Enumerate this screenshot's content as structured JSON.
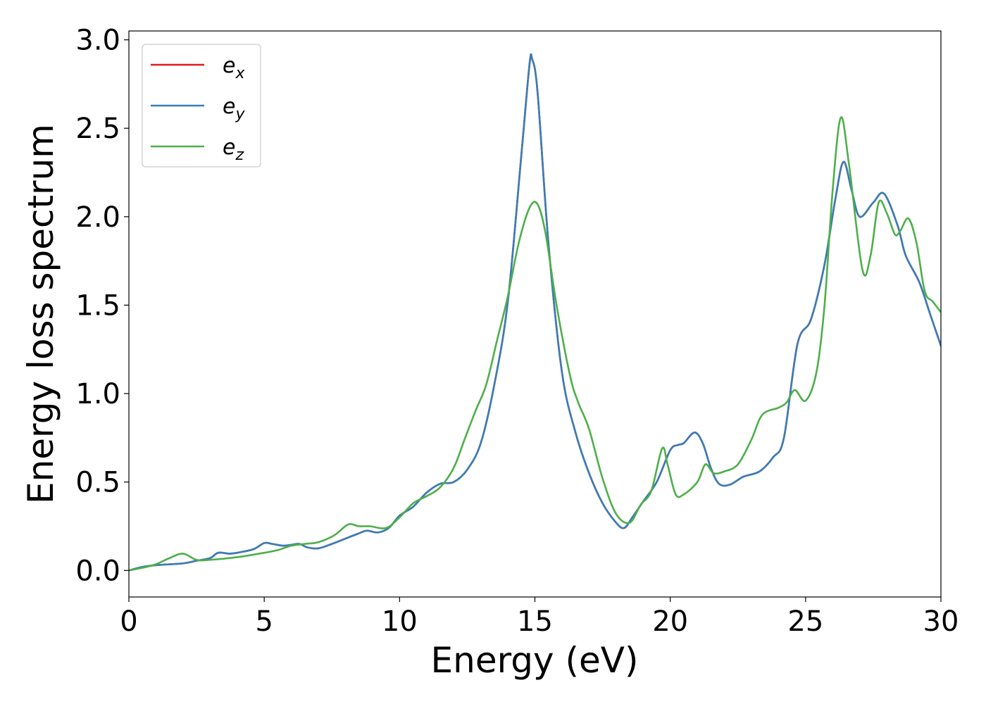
{
  "chart_data": {
    "type": "line",
    "xlabel": "Energy (eV)",
    "ylabel": "Energy loss spectrum",
    "xlim": [
      0,
      30
    ],
    "ylim": [
      -0.15,
      3.05
    ],
    "x_ticks": [
      "0",
      "5",
      "10",
      "15",
      "20",
      "25",
      "30"
    ],
    "y_ticks": [
      "0.0",
      "0.5",
      "1.0",
      "1.5",
      "2.0",
      "2.5",
      "3.0"
    ],
    "grid": false,
    "legend_position": "top-left",
    "series": [
      {
        "name": "e_x",
        "legend_base": "e",
        "legend_sub": "x",
        "color": "#e41a1c",
        "points": [
          [
            0,
            0.0
          ],
          [
            0.5,
            0.02
          ],
          [
            1,
            0.03
          ],
          [
            2,
            0.04
          ],
          [
            2.5,
            0.055
          ],
          [
            3,
            0.07
          ],
          [
            3.3,
            0.1
          ],
          [
            3.7,
            0.095
          ],
          [
            4,
            0.1
          ],
          [
            4.6,
            0.12
          ],
          [
            5,
            0.155
          ],
          [
            5.3,
            0.15
          ],
          [
            5.7,
            0.14
          ],
          [
            6,
            0.145
          ],
          [
            6.3,
            0.15
          ],
          [
            6.6,
            0.13
          ],
          [
            7,
            0.125
          ],
          [
            7.5,
            0.15
          ],
          [
            8,
            0.18
          ],
          [
            8.5,
            0.21
          ],
          [
            8.8,
            0.225
          ],
          [
            9.2,
            0.215
          ],
          [
            9.6,
            0.24
          ],
          [
            10,
            0.31
          ],
          [
            10.5,
            0.36
          ],
          [
            11,
            0.44
          ],
          [
            11.5,
            0.49
          ],
          [
            12,
            0.5
          ],
          [
            12.5,
            0.57
          ],
          [
            13,
            0.72
          ],
          [
            13.5,
            1.05
          ],
          [
            14,
            1.52
          ],
          [
            14.5,
            2.35
          ],
          [
            14.8,
            2.86
          ],
          [
            14.9,
            2.89
          ],
          [
            15.1,
            2.7
          ],
          [
            15.5,
            1.85
          ],
          [
            16,
            1.12
          ],
          [
            16.5,
            0.78
          ],
          [
            17,
            0.55
          ],
          [
            17.5,
            0.38
          ],
          [
            18,
            0.27
          ],
          [
            18.3,
            0.24
          ],
          [
            18.6,
            0.3
          ],
          [
            19,
            0.39
          ],
          [
            19.5,
            0.5
          ],
          [
            20,
            0.68
          ],
          [
            20.3,
            0.71
          ],
          [
            20.5,
            0.72
          ],
          [
            20.9,
            0.78
          ],
          [
            21.2,
            0.72
          ],
          [
            21.5,
            0.58
          ],
          [
            21.8,
            0.49
          ],
          [
            22.2,
            0.485
          ],
          [
            22.7,
            0.53
          ],
          [
            23.3,
            0.56
          ],
          [
            23.8,
            0.64
          ],
          [
            24.2,
            0.75
          ],
          [
            24.7,
            1.28
          ],
          [
            25.2,
            1.42
          ],
          [
            25.7,
            1.73
          ],
          [
            26.1,
            2.1
          ],
          [
            26.4,
            2.31
          ],
          [
            26.7,
            2.15
          ],
          [
            27,
            2.0
          ],
          [
            27.5,
            2.08
          ],
          [
            27.9,
            2.13
          ],
          [
            28.4,
            1.95
          ],
          [
            28.7,
            1.78
          ],
          [
            29.2,
            1.63
          ],
          [
            29.6,
            1.45
          ],
          [
            30,
            1.27
          ]
        ]
      },
      {
        "name": "e_y",
        "legend_base": "e",
        "legend_sub": "y",
        "color": "#377eb8",
        "points": [
          [
            0,
            0.0
          ],
          [
            0.5,
            0.02
          ],
          [
            1,
            0.03
          ],
          [
            2,
            0.04
          ],
          [
            2.5,
            0.055
          ],
          [
            3,
            0.07
          ],
          [
            3.3,
            0.1
          ],
          [
            3.7,
            0.095
          ],
          [
            4,
            0.1
          ],
          [
            4.6,
            0.12
          ],
          [
            5,
            0.155
          ],
          [
            5.3,
            0.15
          ],
          [
            5.7,
            0.14
          ],
          [
            6,
            0.145
          ],
          [
            6.3,
            0.15
          ],
          [
            6.6,
            0.13
          ],
          [
            7,
            0.125
          ],
          [
            7.5,
            0.15
          ],
          [
            8,
            0.18
          ],
          [
            8.5,
            0.21
          ],
          [
            8.8,
            0.225
          ],
          [
            9.2,
            0.215
          ],
          [
            9.6,
            0.24
          ],
          [
            10,
            0.31
          ],
          [
            10.5,
            0.36
          ],
          [
            11,
            0.44
          ],
          [
            11.5,
            0.49
          ],
          [
            12,
            0.5
          ],
          [
            12.5,
            0.57
          ],
          [
            13,
            0.72
          ],
          [
            13.5,
            1.05
          ],
          [
            14,
            1.52
          ],
          [
            14.5,
            2.35
          ],
          [
            14.8,
            2.86
          ],
          [
            14.9,
            2.89
          ],
          [
            15.1,
            2.7
          ],
          [
            15.5,
            1.85
          ],
          [
            16,
            1.12
          ],
          [
            16.5,
            0.78
          ],
          [
            17,
            0.55
          ],
          [
            17.5,
            0.38
          ],
          [
            18,
            0.27
          ],
          [
            18.3,
            0.24
          ],
          [
            18.6,
            0.3
          ],
          [
            19,
            0.39
          ],
          [
            19.5,
            0.5
          ],
          [
            20,
            0.68
          ],
          [
            20.3,
            0.71
          ],
          [
            20.5,
            0.72
          ],
          [
            20.9,
            0.78
          ],
          [
            21.2,
            0.72
          ],
          [
            21.5,
            0.58
          ],
          [
            21.8,
            0.49
          ],
          [
            22.2,
            0.485
          ],
          [
            22.7,
            0.53
          ],
          [
            23.3,
            0.56
          ],
          [
            23.8,
            0.64
          ],
          [
            24.2,
            0.75
          ],
          [
            24.7,
            1.28
          ],
          [
            25.2,
            1.42
          ],
          [
            25.7,
            1.73
          ],
          [
            26.1,
            2.1
          ],
          [
            26.4,
            2.31
          ],
          [
            26.7,
            2.15
          ],
          [
            27,
            2.0
          ],
          [
            27.5,
            2.08
          ],
          [
            27.9,
            2.13
          ],
          [
            28.4,
            1.95
          ],
          [
            28.7,
            1.78
          ],
          [
            29.2,
            1.63
          ],
          [
            29.6,
            1.45
          ],
          [
            30,
            1.27
          ]
        ]
      },
      {
        "name": "e_z",
        "legend_base": "e",
        "legend_sub": "z",
        "color": "#4daf4a",
        "points": [
          [
            0,
            0.0
          ],
          [
            0.5,
            0.015
          ],
          [
            1,
            0.035
          ],
          [
            1.5,
            0.07
          ],
          [
            2,
            0.095
          ],
          [
            2.5,
            0.06
          ],
          [
            3,
            0.06
          ],
          [
            4,
            0.075
          ],
          [
            5,
            0.1
          ],
          [
            5.5,
            0.115
          ],
          [
            6,
            0.14
          ],
          [
            6.5,
            0.15
          ],
          [
            7,
            0.16
          ],
          [
            7.6,
            0.2
          ],
          [
            8.1,
            0.26
          ],
          [
            8.5,
            0.25
          ],
          [
            8.9,
            0.25
          ],
          [
            9.5,
            0.24
          ],
          [
            10,
            0.3
          ],
          [
            10.5,
            0.38
          ],
          [
            11,
            0.42
          ],
          [
            11.5,
            0.47
          ],
          [
            12,
            0.58
          ],
          [
            12.4,
            0.74
          ],
          [
            12.8,
            0.9
          ],
          [
            13.2,
            1.05
          ],
          [
            13.6,
            1.3
          ],
          [
            14,
            1.55
          ],
          [
            14.4,
            1.85
          ],
          [
            14.8,
            2.05
          ],
          [
            15.1,
            2.07
          ],
          [
            15.4,
            1.9
          ],
          [
            15.8,
            1.5
          ],
          [
            16.3,
            1.1
          ],
          [
            16.6,
            0.95
          ],
          [
            17,
            0.8
          ],
          [
            17.5,
            0.52
          ],
          [
            18,
            0.32
          ],
          [
            18.5,
            0.27
          ],
          [
            18.9,
            0.37
          ],
          [
            19.3,
            0.45
          ],
          [
            19.7,
            0.69
          ],
          [
            19.9,
            0.6
          ],
          [
            20.2,
            0.43
          ],
          [
            20.5,
            0.43
          ],
          [
            21,
            0.5
          ],
          [
            21.3,
            0.6
          ],
          [
            21.6,
            0.55
          ],
          [
            22,
            0.56
          ],
          [
            22.5,
            0.6
          ],
          [
            23,
            0.74
          ],
          [
            23.4,
            0.88
          ],
          [
            24,
            0.92
          ],
          [
            24.3,
            0.95
          ],
          [
            24.6,
            1.02
          ],
          [
            25,
            0.96
          ],
          [
            25.4,
            1.12
          ],
          [
            25.7,
            1.5
          ],
          [
            26,
            2.15
          ],
          [
            26.3,
            2.56
          ],
          [
            26.6,
            2.3
          ],
          [
            27.1,
            1.7
          ],
          [
            27.4,
            1.78
          ],
          [
            27.7,
            2.08
          ],
          [
            28,
            2.02
          ],
          [
            28.3,
            1.9
          ],
          [
            28.5,
            1.92
          ],
          [
            28.8,
            1.99
          ],
          [
            29.1,
            1.85
          ],
          [
            29.4,
            1.58
          ],
          [
            29.7,
            1.52
          ],
          [
            30,
            1.46
          ]
        ]
      }
    ]
  }
}
